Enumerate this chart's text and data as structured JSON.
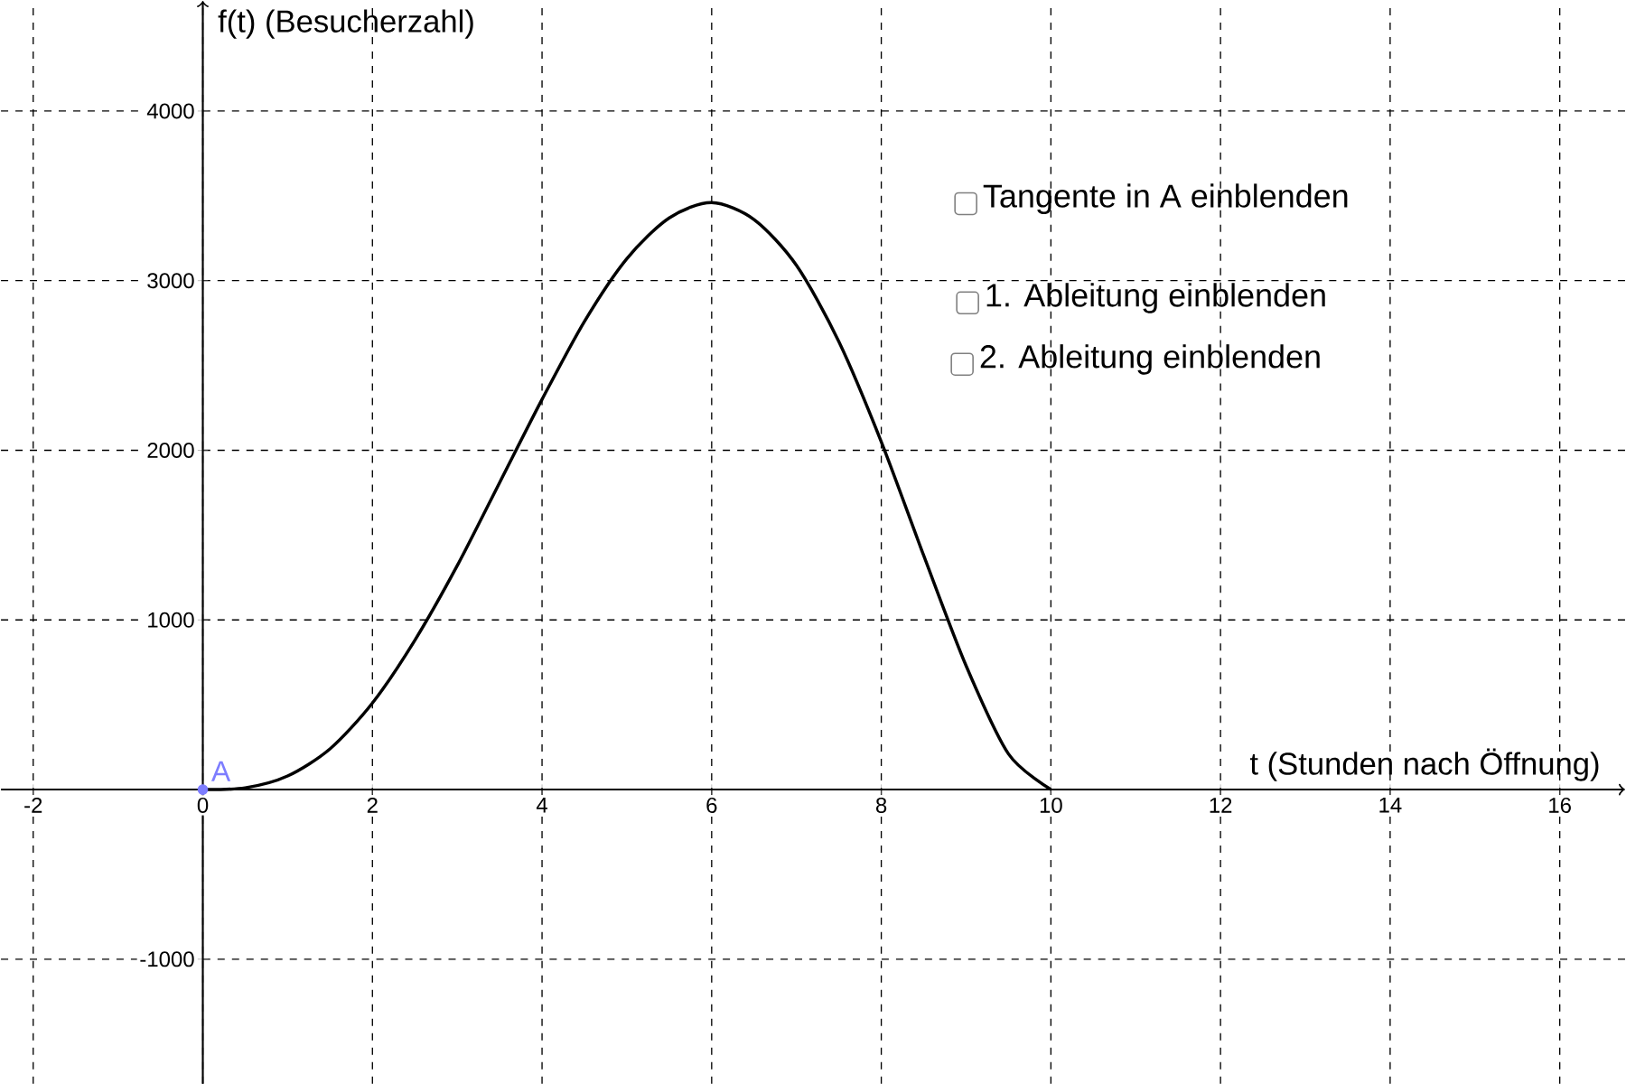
{
  "chart_data": {
    "type": "line",
    "xlabel": "t (Stunden nach Öffnung)",
    "ylabel": "f(t) (Besucherzahl)",
    "xlim": [
      -2.38,
      16.77
    ],
    "ylim": [
      -1734,
      4649
    ],
    "xticks": [
      -2,
      0,
      2,
      4,
      6,
      8,
      10,
      12,
      14,
      16
    ],
    "yticks": [
      -1000,
      1000,
      2000,
      3000,
      4000
    ],
    "grid": true,
    "annotations": [
      "Tangente in A einblenden",
      "1. Ableitung einblenden",
      "2. Ableitung einblenden"
    ],
    "series": [
      {
        "color": "#000000",
        "marker": "none",
        "x": [
          0,
          0.5,
          1,
          1.5,
          2,
          2.5,
          3,
          3.5,
          4,
          4.5,
          5,
          5.5,
          6,
          6.5,
          7,
          7.5,
          8,
          8.5,
          9,
          9.5,
          10
        ],
        "values": [
          0,
          10,
          80,
          240,
          510,
          880,
          1320,
          1810,
          2300,
          2760,
          3130,
          3370,
          3460,
          3360,
          3090,
          2640,
          2050,
          1380,
          730,
          210,
          0
        ]
      },
      {
        "type": "scatter",
        "name": "A",
        "color": "#7d7dff",
        "marker": "circle",
        "x": [
          0
        ],
        "values": [
          0
        ]
      }
    ]
  }
}
